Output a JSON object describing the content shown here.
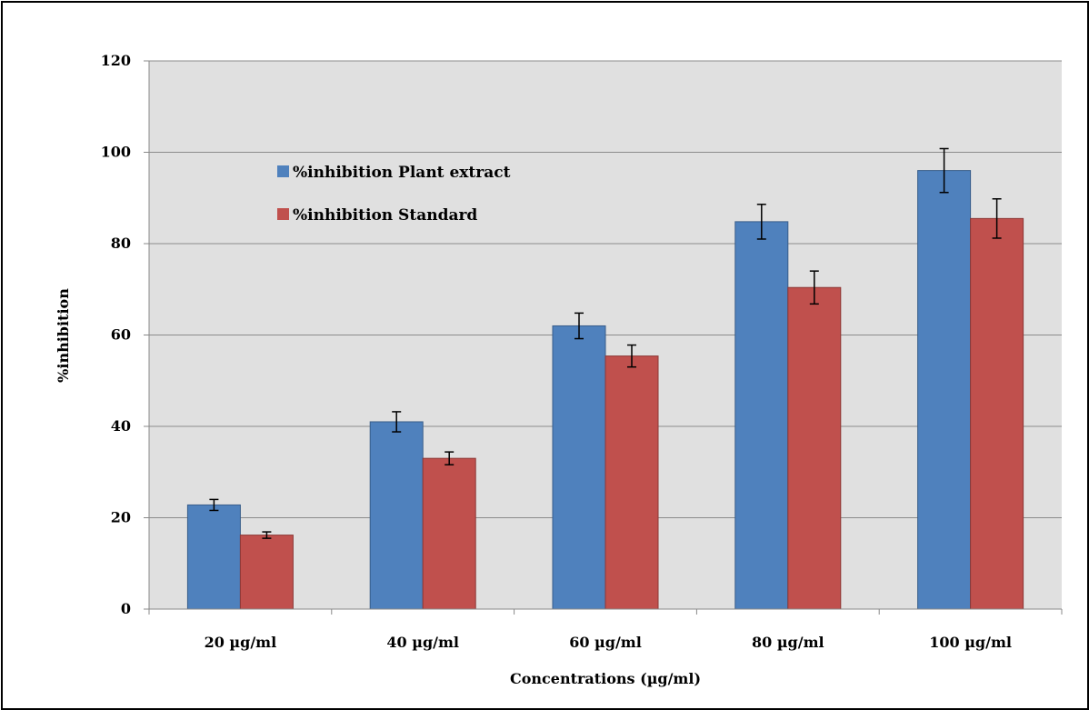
{
  "chart_data": {
    "type": "bar",
    "categories": [
      "20 µg/ml",
      "40 µg/ml",
      "60 µg/ml",
      "80 µg/ml",
      "100 µg/ml"
    ],
    "series": [
      {
        "name": "%inhibition Plant extract",
        "values": [
          22.8,
          41.0,
          62.0,
          84.8,
          96.0
        ],
        "errors": [
          1.2,
          2.2,
          2.8,
          3.8,
          4.8
        ],
        "color": "#4f81bd"
      },
      {
        "name": "%inhibition Standard",
        "values": [
          16.2,
          33.0,
          55.4,
          70.4,
          85.5
        ],
        "errors": [
          0.7,
          1.4,
          2.4,
          3.6,
          4.3
        ],
        "color": "#c0504d"
      }
    ],
    "title": "",
    "xlabel": "Concentrations (µg/ml)",
    "ylabel": "%inhibition",
    "ylim": [
      0,
      120
    ],
    "yticks": [
      "0",
      "20",
      "40",
      "60",
      "80",
      "100",
      "120"
    ],
    "grid": true,
    "legend_position": "top-left",
    "plot_background": "#e0e0e0"
  }
}
